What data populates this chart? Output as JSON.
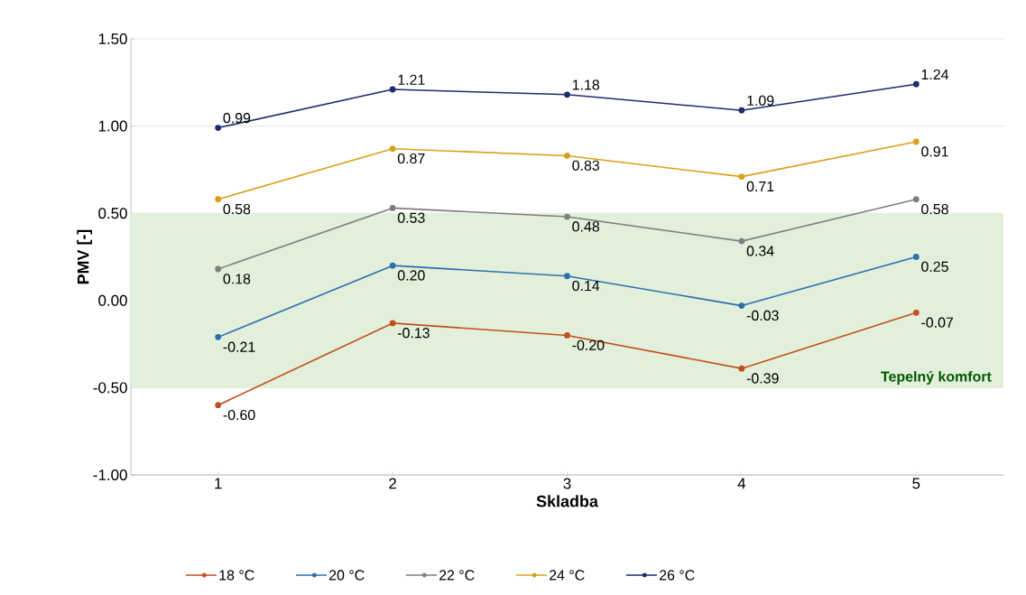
{
  "chart_data": {
    "type": "line",
    "xlabel": "Skladba",
    "ylabel": "PMV [-]",
    "categories": [
      "1",
      "2",
      "3",
      "4",
      "5"
    ],
    "series": [
      {
        "name": "18 °C",
        "color": "#c0501f",
        "values": [
          -0.6,
          -0.13,
          -0.2,
          -0.39,
          -0.07
        ],
        "value_labels": [
          "-0.60",
          "-0.13",
          "-0.20",
          "-0.39",
          "-0.07"
        ]
      },
      {
        "name": "20 °C",
        "color": "#2e6fb0",
        "values": [
          -0.21,
          0.2,
          0.14,
          -0.03,
          0.25
        ],
        "value_labels": [
          "-0.21",
          "0.20",
          "0.14",
          "-0.03",
          "0.25"
        ]
      },
      {
        "name": "22 °C",
        "color": "#7f7f7f",
        "values": [
          0.18,
          0.53,
          0.48,
          0.34,
          0.58
        ],
        "value_labels": [
          "0.18",
          "0.53",
          "0.48",
          "0.34",
          "0.58"
        ]
      },
      {
        "name": "24 °C",
        "color": "#daa01c",
        "values": [
          0.58,
          0.87,
          0.83,
          0.71,
          0.91
        ],
        "value_labels": [
          "0.58",
          "0.87",
          "0.83",
          "0.71",
          "0.91"
        ]
      },
      {
        "name": "26 °C",
        "color": "#1f2c6b",
        "values": [
          0.99,
          1.21,
          1.18,
          1.09,
          1.24
        ],
        "value_labels": [
          "0.99",
          "1.21",
          "1.18",
          "1.09",
          "1.24"
        ]
      }
    ],
    "ylim": [
      -1,
      1.5
    ],
    "yticks": [
      {
        "value": -1,
        "label": "-1.00"
      },
      {
        "value": -0.5,
        "label": "-0.50"
      },
      {
        "value": 0,
        "label": "0.00"
      },
      {
        "value": 0.5,
        "label": "0.50"
      },
      {
        "value": 1,
        "label": "1.00"
      },
      {
        "value": 1.5,
        "label": "1.50"
      }
    ],
    "bands": [
      {
        "axis": "y",
        "from": -0.5,
        "to": 0.5,
        "label": "Tepelný komfort",
        "color": "#e2efda"
      }
    ],
    "grid": "y",
    "legend": "bottom",
    "marker": "circle",
    "line_style": "solid"
  }
}
